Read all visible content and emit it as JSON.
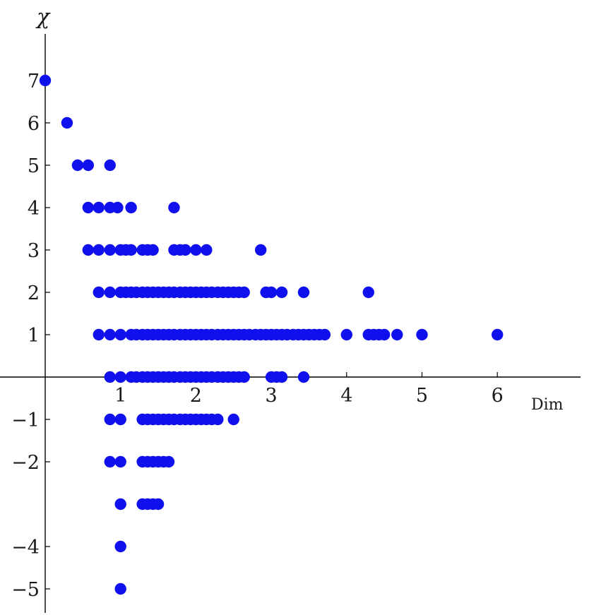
{
  "chart_data": {
    "type": "scatter",
    "title": "",
    "xlabel": "Dim",
    "ylabel": "χ",
    "xlim": [
      0,
      7
    ],
    "ylim": [
      -5.6,
      8.1
    ],
    "grid": false,
    "legend": "none",
    "color": "#1010ee",
    "x_ticks": [
      "1",
      "2",
      "3",
      "4",
      "5",
      "6"
    ],
    "y_ticks": [
      "7",
      "6",
      "5",
      "4",
      "3",
      "2",
      "1",
      "−1",
      "−2",
      "−4",
      "−5"
    ],
    "points": [
      {
        "x": 0.0,
        "y": 7
      },
      {
        "x": 0.29,
        "y": 6
      },
      {
        "x": 0.43,
        "y": 5
      },
      {
        "x": 0.57,
        "y": 5
      },
      {
        "x": 0.86,
        "y": 5
      },
      {
        "x": 0.57,
        "y": 4
      },
      {
        "x": 0.71,
        "y": 4
      },
      {
        "x": 0.86,
        "y": 4
      },
      {
        "x": 0.96,
        "y": 4
      },
      {
        "x": 1.14,
        "y": 4
      },
      {
        "x": 1.71,
        "y": 4
      },
      {
        "x": 0.57,
        "y": 3
      },
      {
        "x": 0.71,
        "y": 3
      },
      {
        "x": 0.86,
        "y": 3
      },
      {
        "x": 1.0,
        "y": 3
      },
      {
        "x": 1.07,
        "y": 3
      },
      {
        "x": 1.14,
        "y": 3
      },
      {
        "x": 1.29,
        "y": 3
      },
      {
        "x": 1.36,
        "y": 3
      },
      {
        "x": 1.43,
        "y": 3
      },
      {
        "x": 1.71,
        "y": 3
      },
      {
        "x": 1.79,
        "y": 3
      },
      {
        "x": 1.86,
        "y": 3
      },
      {
        "x": 2.0,
        "y": 3
      },
      {
        "x": 2.14,
        "y": 3
      },
      {
        "x": 2.86,
        "y": 3
      },
      {
        "x": 0.71,
        "y": 2
      },
      {
        "x": 0.86,
        "y": 2
      },
      {
        "x": 1.0,
        "y": 2
      },
      {
        "x": 1.07,
        "y": 2
      },
      {
        "x": 1.14,
        "y": 2
      },
      {
        "x": 1.21,
        "y": 2
      },
      {
        "x": 1.29,
        "y": 2
      },
      {
        "x": 1.36,
        "y": 2
      },
      {
        "x": 1.43,
        "y": 2
      },
      {
        "x": 1.5,
        "y": 2
      },
      {
        "x": 1.57,
        "y": 2
      },
      {
        "x": 1.64,
        "y": 2
      },
      {
        "x": 1.71,
        "y": 2
      },
      {
        "x": 1.79,
        "y": 2
      },
      {
        "x": 1.86,
        "y": 2
      },
      {
        "x": 1.93,
        "y": 2
      },
      {
        "x": 2.0,
        "y": 2
      },
      {
        "x": 2.07,
        "y": 2
      },
      {
        "x": 2.14,
        "y": 2
      },
      {
        "x": 2.21,
        "y": 2
      },
      {
        "x": 2.29,
        "y": 2
      },
      {
        "x": 2.36,
        "y": 2
      },
      {
        "x": 2.43,
        "y": 2
      },
      {
        "x": 2.5,
        "y": 2
      },
      {
        "x": 2.57,
        "y": 2
      },
      {
        "x": 2.64,
        "y": 2
      },
      {
        "x": 2.93,
        "y": 2
      },
      {
        "x": 3.0,
        "y": 2
      },
      {
        "x": 3.14,
        "y": 2
      },
      {
        "x": 3.43,
        "y": 2
      },
      {
        "x": 4.29,
        "y": 2
      },
      {
        "x": 0.71,
        "y": 1
      },
      {
        "x": 0.86,
        "y": 1
      },
      {
        "x": 1.0,
        "y": 1
      },
      {
        "x": 1.14,
        "y": 1
      },
      {
        "x": 1.21,
        "y": 1
      },
      {
        "x": 1.29,
        "y": 1
      },
      {
        "x": 1.36,
        "y": 1
      },
      {
        "x": 1.43,
        "y": 1
      },
      {
        "x": 1.5,
        "y": 1
      },
      {
        "x": 1.57,
        "y": 1
      },
      {
        "x": 1.64,
        "y": 1
      },
      {
        "x": 1.71,
        "y": 1
      },
      {
        "x": 1.79,
        "y": 1
      },
      {
        "x": 1.86,
        "y": 1
      },
      {
        "x": 1.93,
        "y": 1
      },
      {
        "x": 2.0,
        "y": 1
      },
      {
        "x": 2.07,
        "y": 1
      },
      {
        "x": 2.14,
        "y": 1
      },
      {
        "x": 2.21,
        "y": 1
      },
      {
        "x": 2.29,
        "y": 1
      },
      {
        "x": 2.36,
        "y": 1
      },
      {
        "x": 2.43,
        "y": 1
      },
      {
        "x": 2.5,
        "y": 1
      },
      {
        "x": 2.57,
        "y": 1
      },
      {
        "x": 2.64,
        "y": 1
      },
      {
        "x": 2.71,
        "y": 1
      },
      {
        "x": 2.79,
        "y": 1
      },
      {
        "x": 2.86,
        "y": 1
      },
      {
        "x": 2.93,
        "y": 1
      },
      {
        "x": 3.0,
        "y": 1
      },
      {
        "x": 3.07,
        "y": 1
      },
      {
        "x": 3.14,
        "y": 1
      },
      {
        "x": 3.21,
        "y": 1
      },
      {
        "x": 3.29,
        "y": 1
      },
      {
        "x": 3.36,
        "y": 1
      },
      {
        "x": 3.43,
        "y": 1
      },
      {
        "x": 3.5,
        "y": 1
      },
      {
        "x": 3.57,
        "y": 1
      },
      {
        "x": 3.64,
        "y": 1
      },
      {
        "x": 3.71,
        "y": 1
      },
      {
        "x": 4.0,
        "y": 1
      },
      {
        "x": 4.29,
        "y": 1
      },
      {
        "x": 4.36,
        "y": 1
      },
      {
        "x": 4.43,
        "y": 1
      },
      {
        "x": 4.5,
        "y": 1
      },
      {
        "x": 4.67,
        "y": 1
      },
      {
        "x": 5.0,
        "y": 1
      },
      {
        "x": 6.0,
        "y": 1
      },
      {
        "x": 0.86,
        "y": 0
      },
      {
        "x": 1.0,
        "y": 0
      },
      {
        "x": 1.14,
        "y": 0
      },
      {
        "x": 1.21,
        "y": 0
      },
      {
        "x": 1.29,
        "y": 0
      },
      {
        "x": 1.36,
        "y": 0
      },
      {
        "x": 1.43,
        "y": 0
      },
      {
        "x": 1.5,
        "y": 0
      },
      {
        "x": 1.57,
        "y": 0
      },
      {
        "x": 1.64,
        "y": 0
      },
      {
        "x": 1.71,
        "y": 0
      },
      {
        "x": 1.79,
        "y": 0
      },
      {
        "x": 1.86,
        "y": 0
      },
      {
        "x": 1.93,
        "y": 0
      },
      {
        "x": 2.0,
        "y": 0
      },
      {
        "x": 2.07,
        "y": 0
      },
      {
        "x": 2.14,
        "y": 0
      },
      {
        "x": 2.21,
        "y": 0
      },
      {
        "x": 2.29,
        "y": 0
      },
      {
        "x": 2.36,
        "y": 0
      },
      {
        "x": 2.43,
        "y": 0
      },
      {
        "x": 2.5,
        "y": 0
      },
      {
        "x": 2.57,
        "y": 0
      },
      {
        "x": 2.64,
        "y": 0
      },
      {
        "x": 3.0,
        "y": 0
      },
      {
        "x": 3.07,
        "y": 0
      },
      {
        "x": 3.14,
        "y": 0
      },
      {
        "x": 3.43,
        "y": 0
      },
      {
        "x": 0.86,
        "y": -1
      },
      {
        "x": 1.0,
        "y": -1
      },
      {
        "x": 1.29,
        "y": -1
      },
      {
        "x": 1.36,
        "y": -1
      },
      {
        "x": 1.43,
        "y": -1
      },
      {
        "x": 1.5,
        "y": -1
      },
      {
        "x": 1.57,
        "y": -1
      },
      {
        "x": 1.64,
        "y": -1
      },
      {
        "x": 1.71,
        "y": -1
      },
      {
        "x": 1.79,
        "y": -1
      },
      {
        "x": 1.86,
        "y": -1
      },
      {
        "x": 1.93,
        "y": -1
      },
      {
        "x": 2.0,
        "y": -1
      },
      {
        "x": 2.07,
        "y": -1
      },
      {
        "x": 2.14,
        "y": -1
      },
      {
        "x": 2.21,
        "y": -1
      },
      {
        "x": 2.29,
        "y": -1
      },
      {
        "x": 2.5,
        "y": -1
      },
      {
        "x": 0.86,
        "y": -2
      },
      {
        "x": 1.0,
        "y": -2
      },
      {
        "x": 1.29,
        "y": -2
      },
      {
        "x": 1.36,
        "y": -2
      },
      {
        "x": 1.43,
        "y": -2
      },
      {
        "x": 1.5,
        "y": -2
      },
      {
        "x": 1.57,
        "y": -2
      },
      {
        "x": 1.64,
        "y": -2
      },
      {
        "x": 1.0,
        "y": -3
      },
      {
        "x": 1.29,
        "y": -3
      },
      {
        "x": 1.36,
        "y": -3
      },
      {
        "x": 1.43,
        "y": -3
      },
      {
        "x": 1.5,
        "y": -3
      },
      {
        "x": 1.0,
        "y": -4
      },
      {
        "x": 1.0,
        "y": -5
      }
    ]
  }
}
